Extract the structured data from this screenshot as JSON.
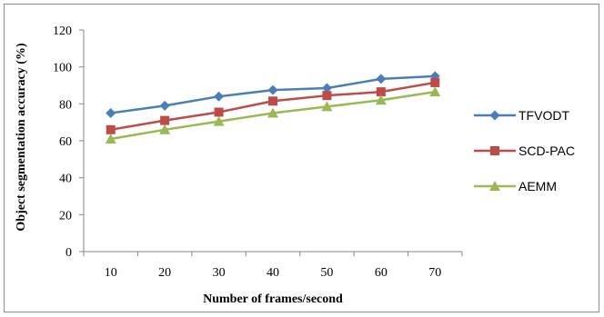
{
  "chart_data": {
    "type": "line",
    "title": "",
    "xlabel": "Number of frames/second",
    "ylabel": "Object segmentation accuracy (%)",
    "categories": [
      "10",
      "20",
      "30",
      "40",
      "50",
      "60",
      "70"
    ],
    "ylim": [
      0,
      120
    ],
    "yticks": [
      "0",
      "20",
      "40",
      "60",
      "80",
      "100",
      "120"
    ],
    "grid": false,
    "legend_position": "right",
    "series": [
      {
        "name": "TFVODT",
        "color": "#4a7ebb",
        "marker": "diamond",
        "values": [
          75,
          79,
          84,
          87.5,
          88.5,
          93.5,
          95
        ]
      },
      {
        "name": "SCD-PAC",
        "color": "#be4b48",
        "marker": "square",
        "values": [
          66,
          71,
          75.5,
          81.5,
          84.5,
          86.5,
          91.5
        ]
      },
      {
        "name": "AEMM",
        "color": "#98b954",
        "marker": "triangle",
        "values": [
          61,
          66,
          70.5,
          75,
          78.5,
          82,
          86.5
        ]
      }
    ]
  }
}
